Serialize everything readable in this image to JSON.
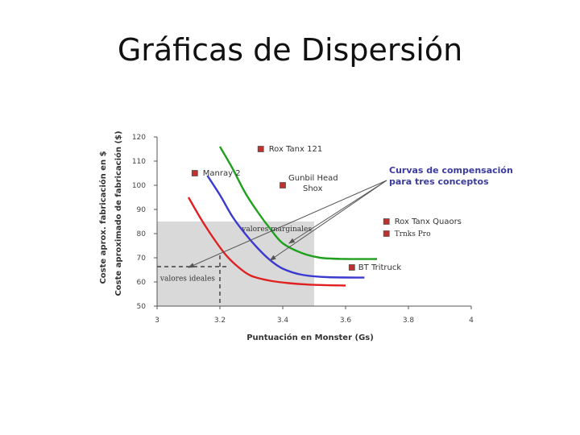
{
  "slide": {
    "title": "Gráficas de Dispersión"
  },
  "chart_data": {
    "type": "scatter",
    "ylabel_1": "Coste aprox. fabricación en $",
    "ylabel_2": "Coste aproximado de fabricación ($)",
    "xlabel": "Puntuación en Monster (Gs)",
    "xlim": [
      3,
      4
    ],
    "ylim": [
      50,
      120
    ],
    "x_tick_labels": [
      "3",
      "3.2",
      "3.4",
      "3.6",
      "3.8",
      "4"
    ],
    "y_tick_labels": [
      "50",
      "60",
      "70",
      "80",
      "90",
      "100",
      "110",
      "120"
    ],
    "x_ticks": [
      3.0,
      3.2,
      3.4,
      3.6,
      3.8,
      4.0
    ],
    "y_ticks": [
      50,
      60,
      70,
      80,
      90,
      100,
      110,
      120
    ],
    "grid": false,
    "colors": {
      "points": "#c0302c",
      "curve_red": "#e02020",
      "curve_blue": "#3a3ad0",
      "curve_green": "#1fa01f",
      "region": "#d9d9d9",
      "annotation": "#3b3b9c"
    },
    "points": [
      {
        "name": "Rox Tanx 121",
        "x": 3.33,
        "y": 115
      },
      {
        "name": "Manray 2",
        "x": 3.12,
        "y": 105
      },
      {
        "name": "Gunbil Head Shox",
        "x": 3.4,
        "y": 100
      },
      {
        "name": "Rox Tanx Quaors",
        "x": 3.73,
        "y": 85
      },
      {
        "name": "Trnks Pro",
        "x": 3.73,
        "y": 80
      },
      {
        "name": "BT Tritruck",
        "x": 3.62,
        "y": 66
      }
    ],
    "series": [
      {
        "color": "red",
        "x": [
          3.1,
          3.14,
          3.18,
          3.22,
          3.26,
          3.3,
          3.36,
          3.42,
          3.5,
          3.6
        ],
        "y": [
          95,
          86,
          78,
          71,
          66,
          62.5,
          60.5,
          59.5,
          58.8,
          58.5
        ]
      },
      {
        "color": "blue",
        "x": [
          3.16,
          3.2,
          3.24,
          3.28,
          3.32,
          3.36,
          3.4,
          3.46,
          3.54,
          3.66
        ],
        "y": [
          104,
          96,
          87,
          80,
          74,
          69,
          65.5,
          63,
          62,
          61.8
        ]
      },
      {
        "color": "green",
        "x": [
          3.2,
          3.24,
          3.28,
          3.32,
          3.36,
          3.4,
          3.46,
          3.52,
          3.6,
          3.7
        ],
        "y": [
          116,
          107,
          97,
          89,
          82,
          76,
          72,
          70,
          69.5,
          69.5
        ]
      }
    ],
    "regions": [
      {
        "label": "valores marginales",
        "x": [
          3.0,
          3.5
        ],
        "y": [
          50,
          85
        ]
      },
      {
        "label": "valores ideales",
        "x": [
          3.0,
          3.2
        ],
        "y": [
          50,
          67
        ]
      }
    ],
    "annotation": {
      "line1": "Curvas de compensación",
      "line2": "para tres conceptos"
    }
  }
}
